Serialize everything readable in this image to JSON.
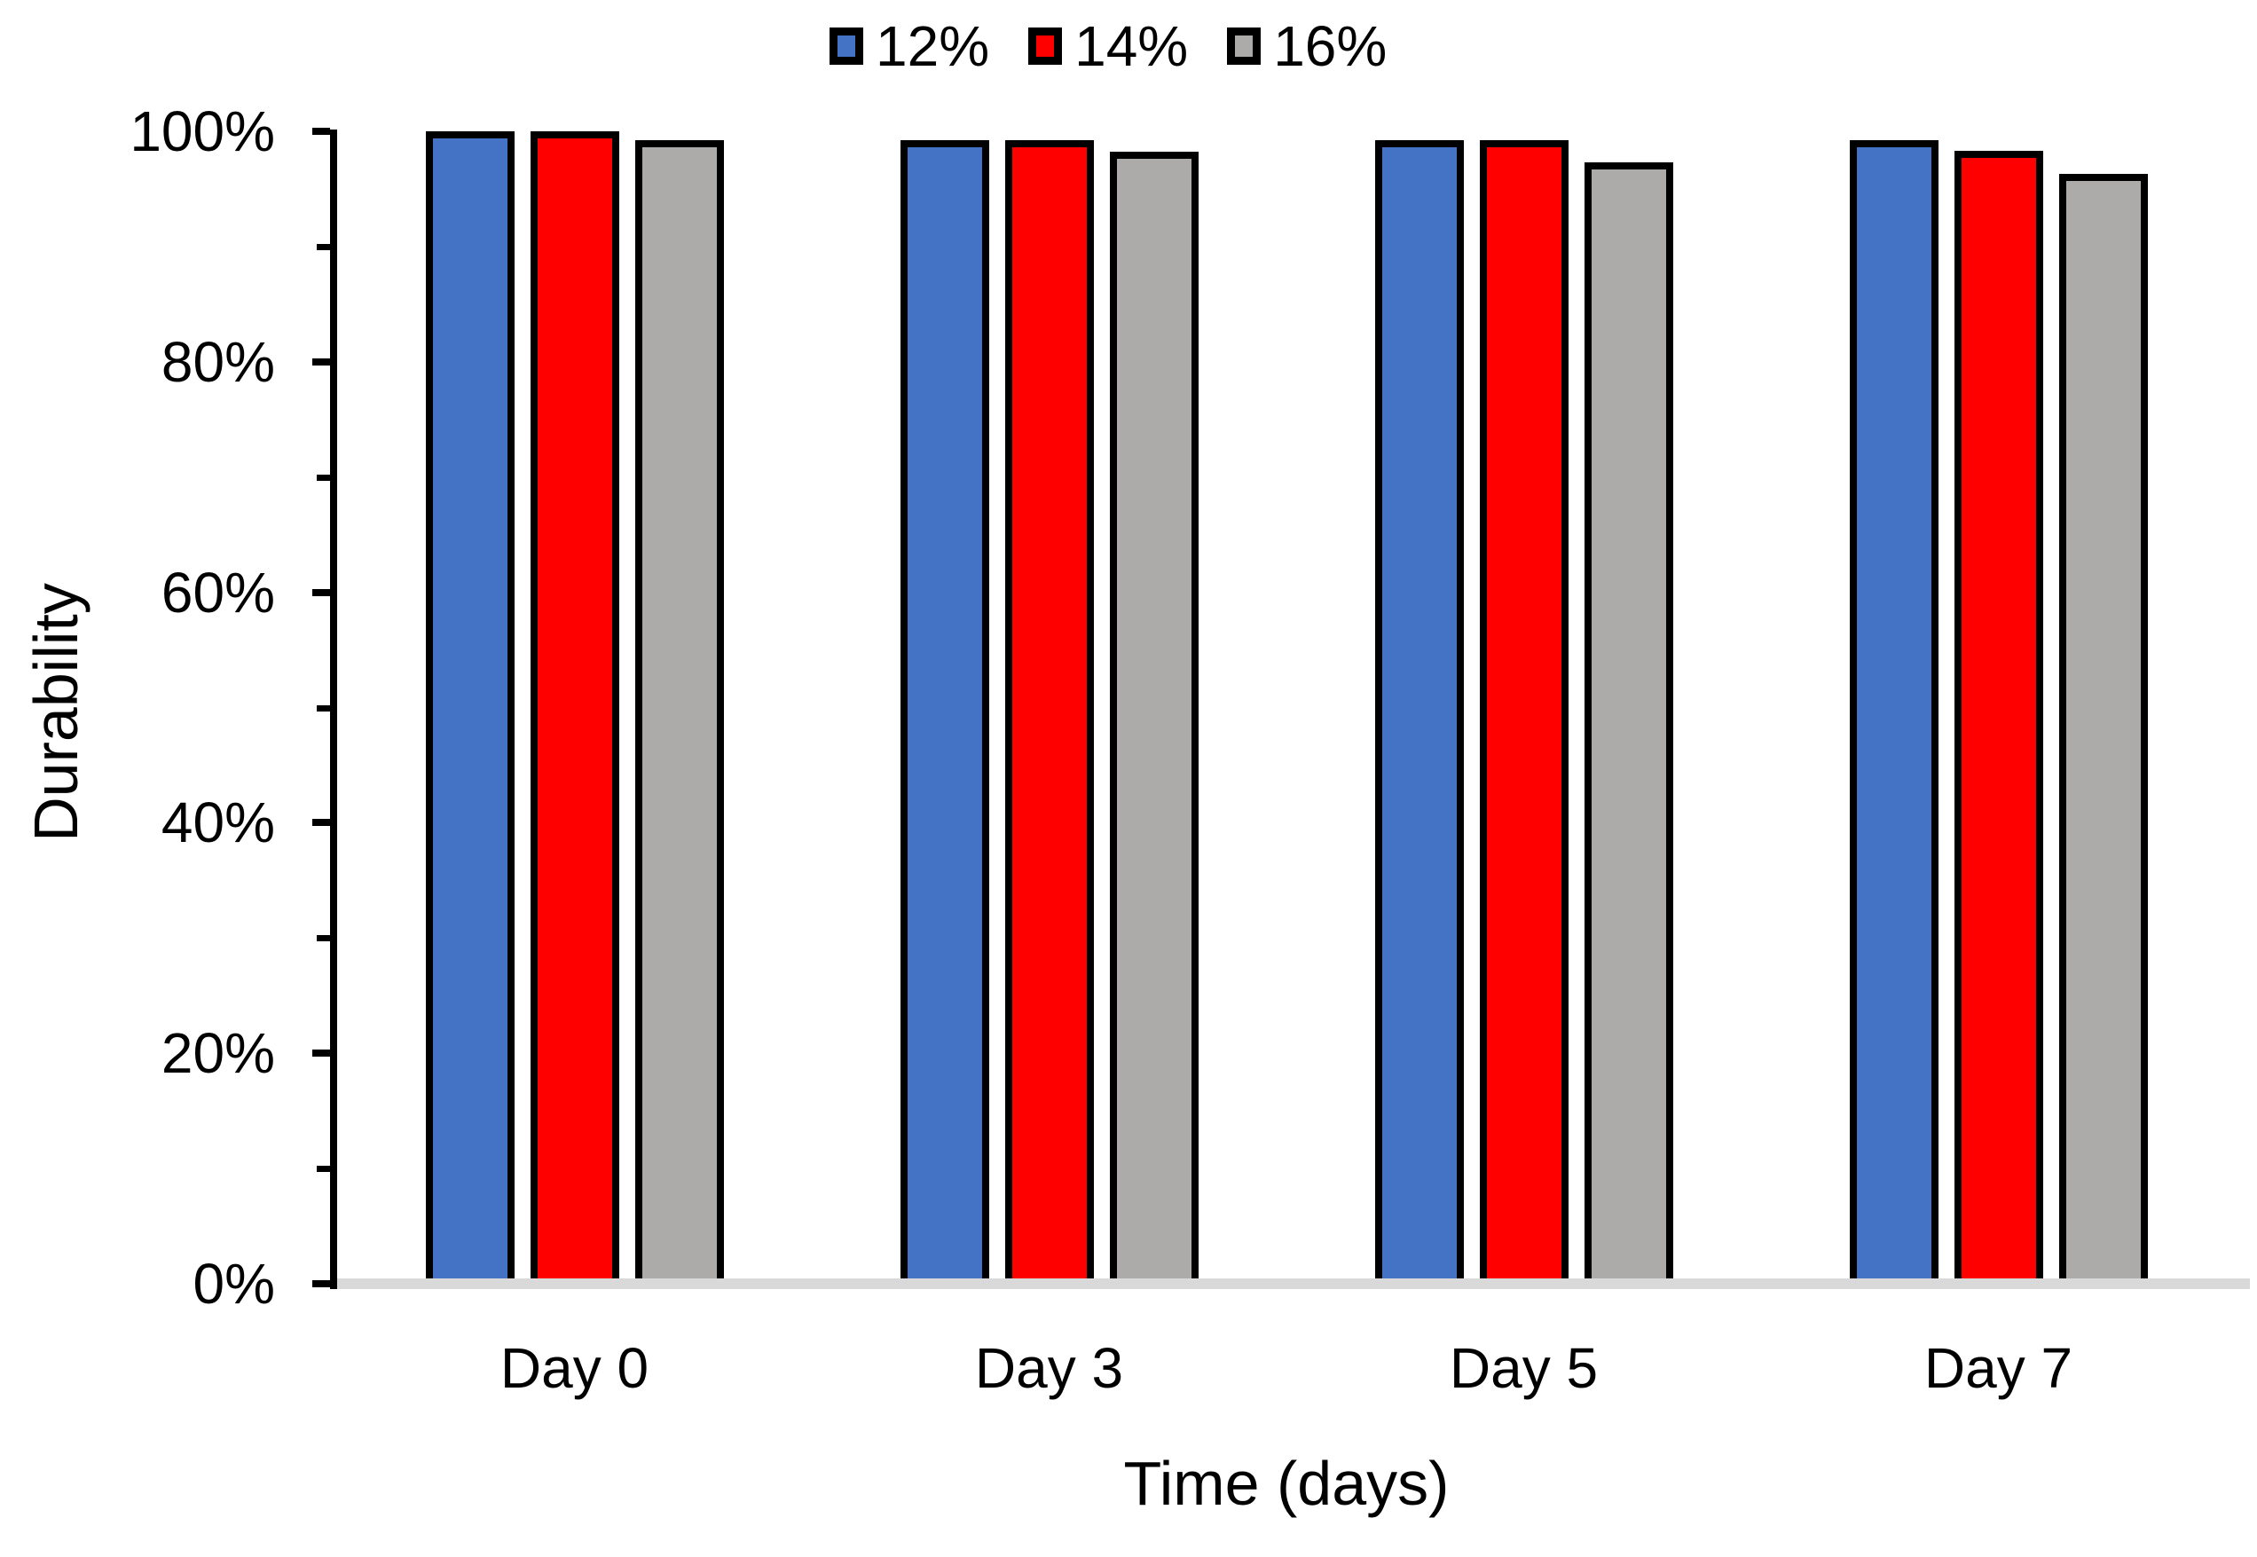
{
  "chart_data": {
    "type": "bar",
    "title": "",
    "categories": [
      "Day 0",
      "Day 3",
      "Day 5",
      "Day 7"
    ],
    "series": [
      {
        "name": "12%",
        "color": "#4472C4",
        "values": [
          100.0,
          99.2,
          99.2,
          99.2
        ]
      },
      {
        "name": "14%",
        "color": "#FF0000",
        "values": [
          100.0,
          99.2,
          99.2,
          98.3
        ]
      },
      {
        "name": "16%",
        "color": "#ADAAAA",
        "values": [
          99.2,
          98.2,
          97.3,
          96.3
        ]
      }
    ],
    "xlabel": "Time (days)",
    "ylabel": "Durability",
    "ylim": [
      0,
      100
    ],
    "y_major_ticks": [
      {
        "value": 0,
        "label": "0%"
      },
      {
        "value": 20,
        "label": "20%"
      },
      {
        "value": 40,
        "label": "40%"
      },
      {
        "value": 60,
        "label": "60%"
      },
      {
        "value": 80,
        "label": "80%"
      },
      {
        "value": 100,
        "label": "100%"
      }
    ],
    "y_minor_ticks": [
      10,
      30,
      50,
      70,
      90
    ],
    "legend_position": "top",
    "grid": false
  },
  "colors": {
    "background": "#FFFFFF",
    "axis": "#000000",
    "bar_border": "#000000",
    "baseline": "#D9D9D9",
    "text": "#000000"
  }
}
